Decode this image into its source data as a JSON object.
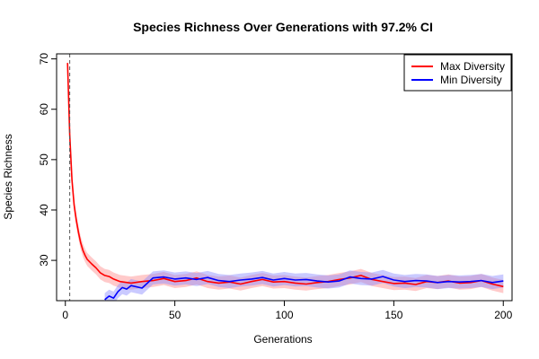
{
  "chart_data": {
    "type": "line",
    "title": "Species Richness Over Generations with 97.2% CI",
    "xlabel": "Generations",
    "ylabel": "Species Richness",
    "xlim": [
      -4,
      204
    ],
    "ylim": [
      22,
      71
    ],
    "xticks": [
      0,
      50,
      100,
      150,
      200
    ],
    "yticks": [
      30,
      40,
      50,
      60,
      70
    ],
    "grid": false,
    "legend_position": "top-right",
    "reference_line": {
      "x": 2,
      "style": "dashed",
      "color": "#555555"
    },
    "colors": {
      "max": "#ff0000",
      "min": "#0000ff",
      "max_band": "#ff8a8a",
      "min_band": "#8a8aff"
    },
    "ci_half_width": 1.3,
    "series": [
      {
        "name": "Max Diversity",
        "x": [
          1,
          2,
          3,
          4,
          5,
          6,
          7,
          8,
          9,
          10,
          12,
          14,
          16,
          18,
          20,
          22,
          25,
          30,
          35,
          40,
          45,
          50,
          55,
          60,
          65,
          70,
          75,
          80,
          85,
          90,
          95,
          100,
          105,
          110,
          115,
          120,
          125,
          130,
          135,
          140,
          145,
          150,
          155,
          160,
          165,
          170,
          175,
          180,
          185,
          190,
          195,
          200
        ],
        "values": [
          69.2,
          55,
          46,
          41,
          38,
          35.5,
          33.5,
          32,
          31,
          30.2,
          29.3,
          28.5,
          27.5,
          27,
          26.8,
          26.3,
          25.8,
          25.5,
          25.8,
          26,
          26.4,
          25.8,
          26,
          26.5,
          25.8,
          25.5,
          25.7,
          25.3,
          25.8,
          26.2,
          25.7,
          25.8,
          25.5,
          25.3,
          25.6,
          25.8,
          26.2,
          26.5,
          27,
          26.2,
          25.8,
          25.4,
          25.5,
          25.2,
          25.8,
          25.6,
          25.9,
          25.5,
          25.6,
          26,
          25.3,
          24.8
        ]
      },
      {
        "name": "Min Diversity",
        "x": [
          18,
          20,
          22,
          24,
          26,
          28,
          30,
          35,
          40,
          45,
          50,
          55,
          60,
          65,
          70,
          75,
          80,
          85,
          90,
          95,
          100,
          105,
          110,
          115,
          120,
          125,
          130,
          135,
          140,
          145,
          150,
          155,
          160,
          165,
          170,
          175,
          180,
          185,
          190,
          195,
          200
        ],
        "values": [
          22.2,
          22.9,
          22.5,
          23.8,
          24.6,
          24.3,
          25,
          24.5,
          26.5,
          26.7,
          26.3,
          26.5,
          26.2,
          26.6,
          26,
          25.8,
          26.1,
          26.3,
          26.6,
          26.1,
          26.4,
          26.1,
          26.2,
          25.9,
          25.7,
          25.9,
          26.7,
          26.4,
          26.3,
          26.8,
          26.1,
          25.8,
          26,
          25.9,
          25.6,
          25.8,
          25.7,
          25.8,
          26,
          25.6,
          25.9
        ]
      }
    ]
  }
}
